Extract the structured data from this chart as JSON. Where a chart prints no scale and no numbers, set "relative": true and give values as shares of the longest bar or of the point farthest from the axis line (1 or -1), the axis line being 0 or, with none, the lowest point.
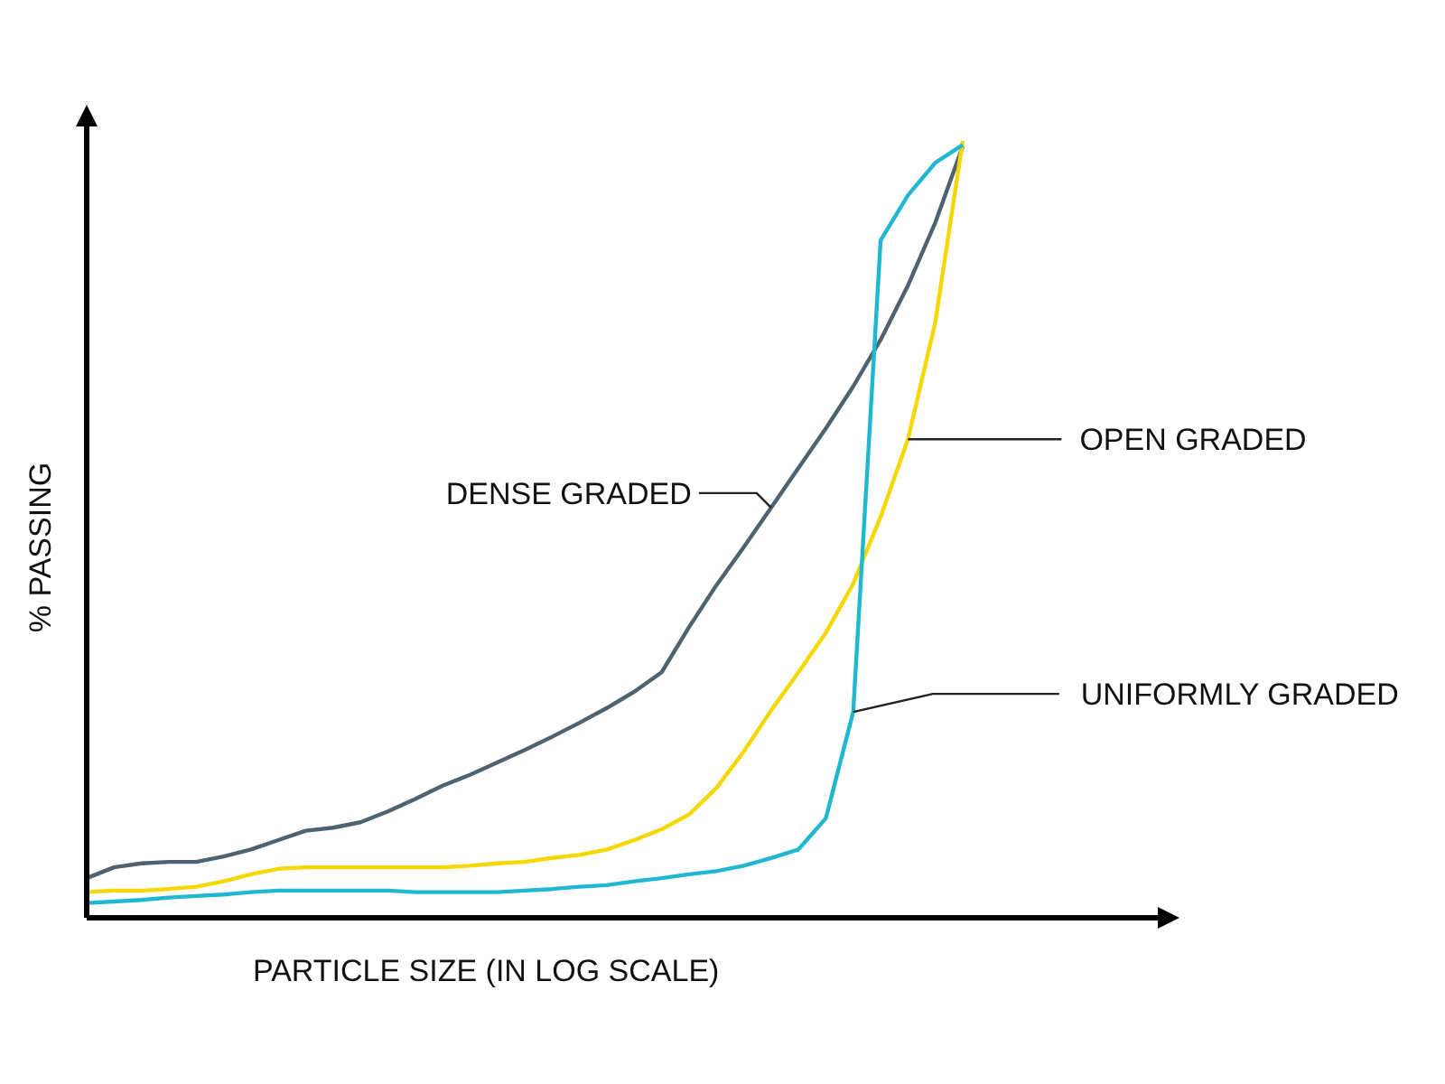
{
  "chart_data": {
    "type": "line",
    "relative": true,
    "xlabel": "PARTICLE SIZE (IN LOG SCALE)",
    "ylabel": "% PASSING",
    "legend": "right",
    "marker": "none",
    "categories": [
      null,
      null,
      null,
      null,
      null,
      null,
      null,
      null,
      null,
      null,
      null,
      null,
      null,
      null,
      null,
      null,
      null,
      null,
      null,
      null,
      null,
      null,
      null,
      null,
      null,
      null,
      null,
      null,
      null,
      null,
      null,
      null,
      null
    ],
    "series": [
      {
        "name": "DENSE GRADED",
        "color": "#4d6470",
        "values": [
          0.051,
          0.065,
          0.07,
          0.072,
          0.072,
          0.079,
          0.088,
          0.1,
          0.112,
          0.116,
          0.123,
          0.137,
          0.153,
          0.17,
          0.184,
          0.2,
          0.216,
          0.233,
          0.251,
          0.27,
          0.291,
          0.316,
          0.374,
          0.428,
          0.477,
          0.528,
          0.579,
          0.63,
          0.684,
          0.744,
          0.814,
          0.895,
          0.993
        ]
      },
      {
        "name": "OPEN GRADED",
        "color": "#f5d800",
        "values": [
          0.033,
          0.035,
          0.035,
          0.037,
          0.04,
          0.047,
          0.056,
          0.063,
          0.065,
          0.065,
          0.065,
          0.065,
          0.065,
          0.065,
          0.067,
          0.07,
          0.072,
          0.077,
          0.081,
          0.088,
          0.1,
          0.114,
          0.133,
          0.167,
          0.214,
          0.267,
          0.316,
          0.367,
          0.43,
          0.516,
          0.616,
          0.767,
          1.0
        ]
      },
      {
        "name": "UNIFORMLY GRADED",
        "color": "#1fb8d0",
        "values": [
          0.019,
          0.021,
          0.023,
          0.026,
          0.028,
          0.03,
          0.033,
          0.035,
          0.035,
          0.035,
          0.035,
          0.035,
          0.033,
          0.033,
          0.033,
          0.033,
          0.035,
          0.037,
          0.04,
          0.042,
          0.047,
          0.051,
          0.056,
          0.06,
          0.067,
          0.077,
          0.088,
          0.128,
          0.265,
          0.872,
          0.93,
          0.972,
          0.995
        ]
      }
    ]
  }
}
